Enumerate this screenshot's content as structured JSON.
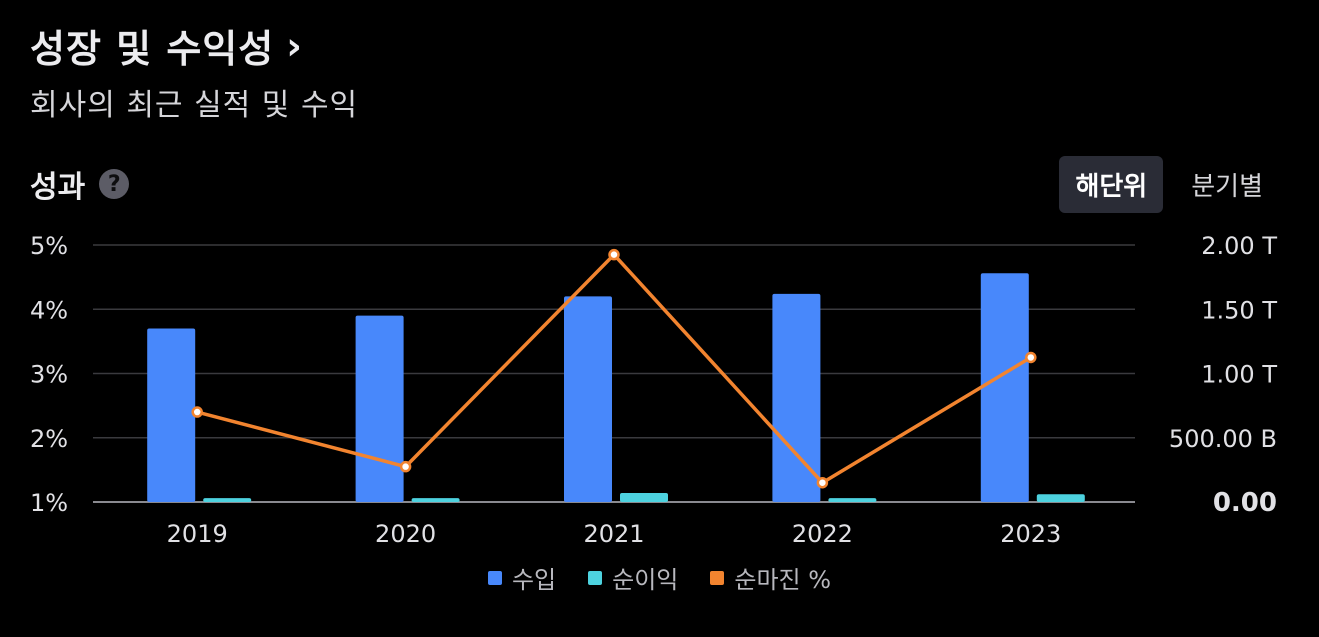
{
  "header": {
    "title": "성장 및 수익성",
    "chevron": "›",
    "subtitle": "회사의 최근 실적 및 수익"
  },
  "section": {
    "title": "성과",
    "help_icon": "question-mark-icon",
    "help_glyph": "?"
  },
  "period_toggle": {
    "active_label": "해단위",
    "inactive_label": "분기별"
  },
  "colors": {
    "revenue": "#4888fb",
    "net_income": "#4dd2df",
    "net_margin": "#f2842f",
    "grid": "#3a3a3e",
    "axis": "#8a8a90",
    "tick_text": "#e1e1e5"
  },
  "chart_data": {
    "type": "bar",
    "categories": [
      "2019",
      "2020",
      "2021",
      "2022",
      "2023"
    ],
    "series": [
      {
        "name": "수입",
        "axis": "right",
        "values": [
          1.35,
          1.45,
          1.6,
          1.62,
          1.78
        ],
        "unit": "T"
      },
      {
        "name": "순이익",
        "axis": "right",
        "values": [
          0.03,
          0.03,
          0.07,
          0.03,
          0.06
        ],
        "unit": "T"
      },
      {
        "name": "순마진 %",
        "type": "line",
        "axis": "left",
        "values": [
          2.4,
          1.55,
          4.85,
          1.3,
          3.25
        ],
        "unit": "%"
      }
    ],
    "left_axis": {
      "ticks": [
        "5%",
        "4%",
        "3%",
        "2%",
        "1%"
      ],
      "range": [
        1,
        5
      ]
    },
    "right_axis": {
      "ticks": [
        "2.00 T",
        "1.50 T",
        "1.00 T",
        "500.00 B",
        "0.00"
      ],
      "range": [
        0,
        2
      ]
    },
    "grid": true,
    "legend_position": "bottom"
  }
}
